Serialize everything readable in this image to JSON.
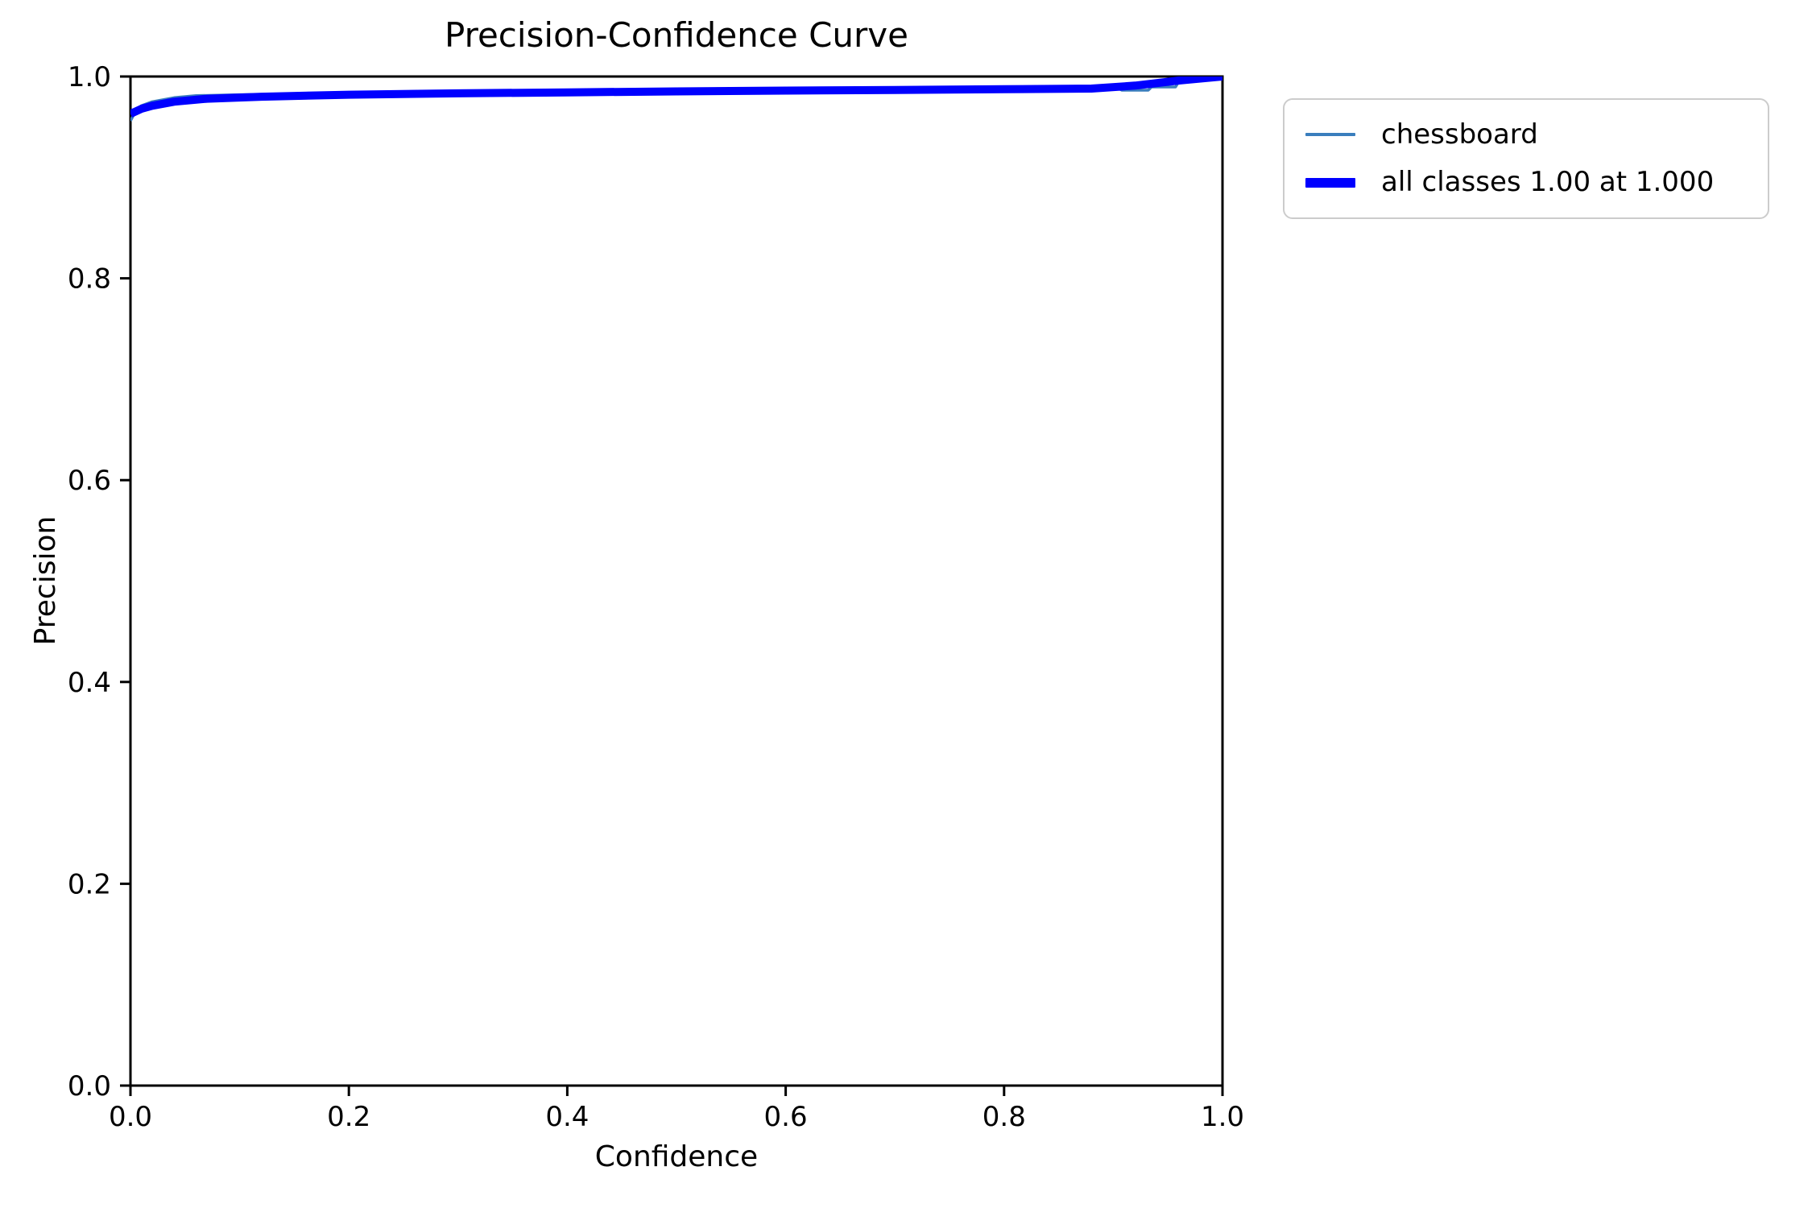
{
  "title": "Precision-Confidence Curve",
  "xlabel": "Confidence",
  "ylabel": "Precision",
  "legend": {
    "items": [
      {
        "label": "chessboard"
      },
      {
        "label": "all classes 1.00 at 1.000"
      }
    ]
  },
  "chart_data": {
    "type": "line",
    "title": "Precision-Confidence Curve",
    "xlabel": "Confidence",
    "ylabel": "Precision",
    "xlim": [
      0.0,
      1.0
    ],
    "ylim": [
      0.0,
      1.0
    ],
    "xticks": [
      "0.0",
      "0.2",
      "0.4",
      "0.6",
      "0.8",
      "1.0"
    ],
    "yticks": [
      "0.0",
      "0.2",
      "0.4",
      "0.6",
      "0.8",
      "1.0"
    ],
    "grid": false,
    "legend_position": "outside upper right",
    "axes_box": true,
    "colors": {
      "spine": "#000000",
      "background": "#ffffff",
      "legend_border": "#cccccc"
    },
    "series": [
      {
        "name": "chessboard",
        "color": "#3a7ebd",
        "linewidth": 3.5,
        "x": [
          0.0,
          0.005,
          0.01,
          0.02,
          0.04,
          0.06,
          0.1,
          0.2,
          0.3,
          0.4,
          0.5,
          0.6,
          0.7,
          0.8,
          0.88,
          0.905,
          0.908,
          0.932,
          0.935,
          0.957,
          0.96,
          0.975,
          1.0
        ],
        "y": [
          0.956,
          0.966,
          0.971,
          0.975,
          0.979,
          0.981,
          0.982,
          0.9833,
          0.9842,
          0.9851,
          0.9859,
          0.9865,
          0.9871,
          0.9877,
          0.988,
          0.988,
          0.9864,
          0.9864,
          0.9896,
          0.9896,
          0.995,
          1.0,
          1.0
        ]
      },
      {
        "name": "all classes 1.00 at 1.000",
        "color": "#0000ff",
        "linewidth": 10,
        "x": [
          0.0,
          0.01,
          0.02,
          0.04,
          0.07,
          0.12,
          0.2,
          0.3,
          0.4,
          0.5,
          0.6,
          0.7,
          0.8,
          0.88,
          0.92,
          0.96,
          1.0
        ],
        "y": [
          0.963,
          0.968,
          0.971,
          0.975,
          0.978,
          0.98,
          0.982,
          0.9833,
          0.9843,
          0.9852,
          0.986,
          0.9867,
          0.9874,
          0.988,
          0.991,
          0.996,
          1.0
        ]
      }
    ]
  }
}
